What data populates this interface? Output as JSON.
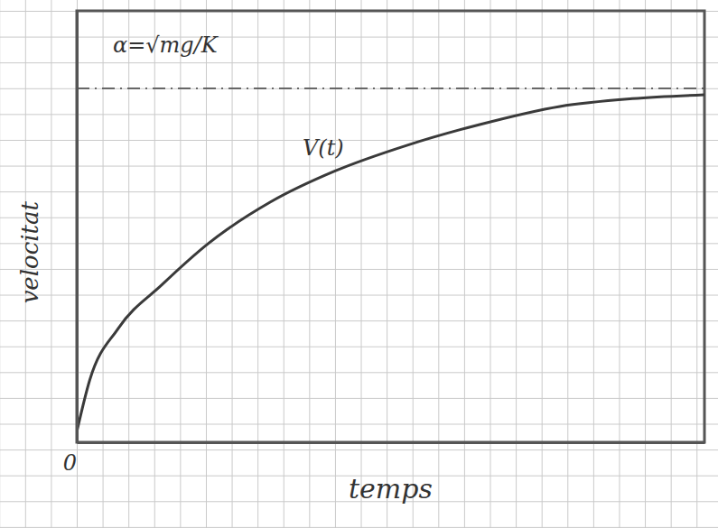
{
  "chart_data": {
    "type": "line",
    "x_label": "temps",
    "y_label": "velocitat",
    "x": [
      0,
      0.5,
      1.6,
      3.3,
      5.1,
      7.5,
      10,
      12.8,
      15.6,
      18.7,
      21.5,
      24.3
    ],
    "series": [
      {
        "name": "V(t)",
        "color": "#3a3a3a",
        "values": [
          0.4,
          2.4,
          4.4,
          6.1,
          7.7,
          9.3,
          10.5,
          11.5,
          12.3,
          13.0,
          13.3,
          13.45
        ]
      }
    ],
    "xlim": [
      0,
      24.3
    ],
    "ylim": [
      0,
      16.7
    ],
    "xticks": [
      0
    ],
    "yticks": [],
    "tick_labels": "x",
    "asymptote": {
      "value": 13.7,
      "label": "α=√mg/K",
      "line_style": "dashdot"
    }
  }
}
